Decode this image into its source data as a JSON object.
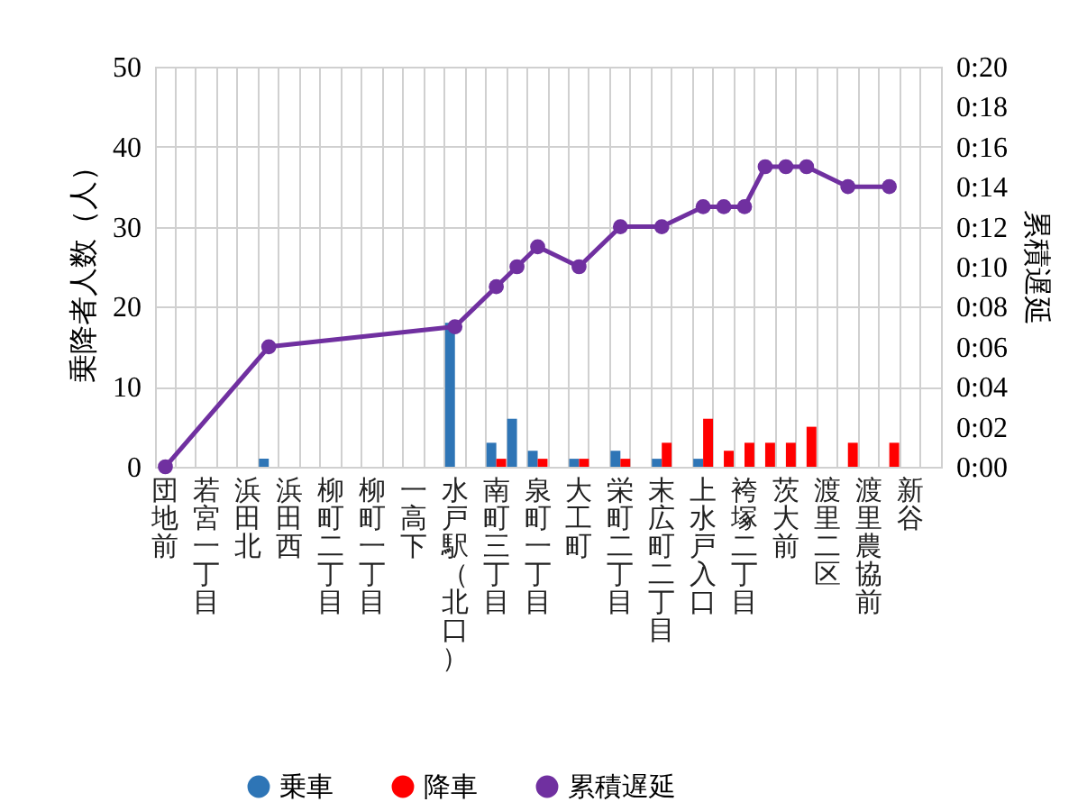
{
  "chart_data": {
    "type": "bar",
    "ylabel": "乗降者人数（人）",
    "y2label": "累積遅延",
    "categories": [
      "団地前",
      null,
      "若宮一丁目",
      null,
      "浜田北",
      null,
      "浜田西",
      null,
      "柳町二丁目",
      null,
      "柳町一丁目",
      null,
      "一高下",
      null,
      "水戸駅（北口）",
      null,
      "南町三丁目",
      null,
      "泉町一丁目",
      null,
      "大工町",
      null,
      "栄町二丁目",
      null,
      "末広町二丁目",
      null,
      "上水戸入口",
      null,
      "袴塚二丁目",
      null,
      "茨大前",
      null,
      "渡里二区",
      null,
      "渡里農協前",
      null,
      "新谷",
      null
    ],
    "series": [
      {
        "name": "乗車",
        "color": "#2e75b6",
        "values": [
          null,
          null,
          null,
          null,
          null,
          1,
          null,
          null,
          null,
          null,
          null,
          null,
          null,
          null,
          18,
          null,
          3,
          6,
          2,
          null,
          1,
          null,
          2,
          null,
          1,
          null,
          1,
          null,
          null,
          null,
          null,
          null,
          null,
          null,
          null,
          null,
          null,
          null
        ]
      },
      {
        "name": "降車",
        "color": "#ff0000",
        "values": [
          null,
          null,
          null,
          null,
          null,
          null,
          null,
          null,
          null,
          null,
          null,
          null,
          null,
          null,
          null,
          null,
          1,
          null,
          1,
          null,
          1,
          null,
          1,
          null,
          3,
          null,
          6,
          2,
          3,
          3,
          3,
          5,
          null,
          3,
          null,
          3,
          null,
          null
        ]
      },
      {
        "name": "累積遅延",
        "type": "line",
        "axis": "y2",
        "color": "#7030a0",
        "marker": "circle",
        "values": [
          0,
          null,
          null,
          null,
          null,
          6,
          null,
          null,
          null,
          null,
          null,
          null,
          null,
          null,
          7,
          null,
          9,
          10,
          11,
          null,
          10,
          null,
          12,
          null,
          12,
          null,
          13,
          13,
          13,
          15,
          15,
          15,
          null,
          14,
          null,
          14,
          null,
          null
        ]
      }
    ],
    "ylim": [
      0,
      50
    ],
    "yticks": [
      0,
      10,
      20,
      30,
      40,
      50
    ],
    "y2lim": [
      0,
      20
    ],
    "y2ticks": [
      {
        "value": 0,
        "label": "0:00"
      },
      {
        "value": 2,
        "label": "0:02"
      },
      {
        "value": 4,
        "label": "0:04"
      },
      {
        "value": 6,
        "label": "0:06"
      },
      {
        "value": 8,
        "label": "0:08"
      },
      {
        "value": 10,
        "label": "0:10"
      },
      {
        "value": 12,
        "label": "0:12"
      },
      {
        "value": 14,
        "label": "0:14"
      },
      {
        "value": 16,
        "label": "0:16"
      },
      {
        "value": 18,
        "label": "0:18"
      },
      {
        "value": 20,
        "label": "0:20"
      }
    ],
    "grid": true,
    "legend": "bottom"
  }
}
